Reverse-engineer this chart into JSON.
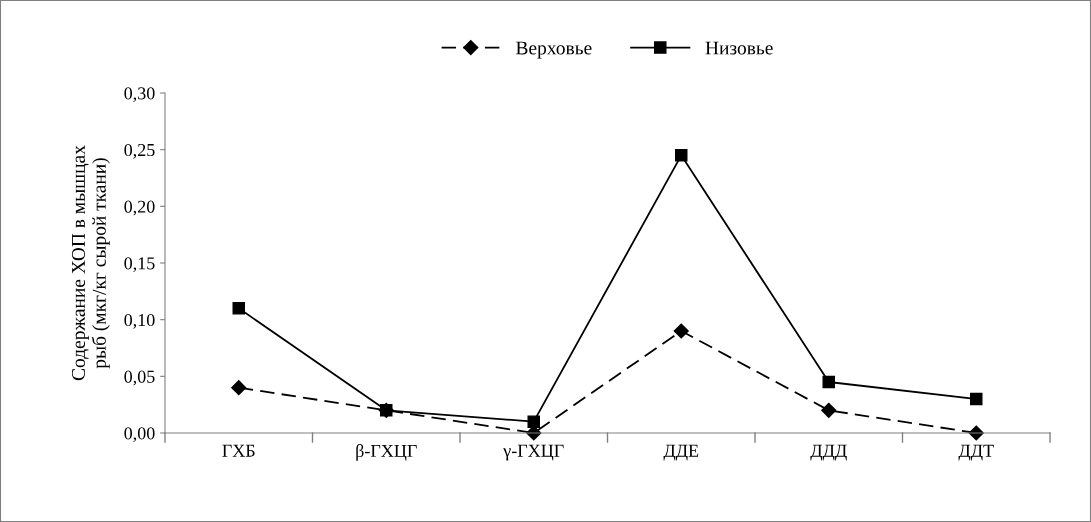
{
  "chart_data": {
    "type": "line",
    "ylabel": "Содержание ХОП в мышцах\nрыб (мкг/кг сырой ткани)",
    "categories": [
      "ГХБ",
      "β-ГХЦГ",
      "γ-ГХЦГ",
      "ДДЕ",
      "ДДД",
      "ДДТ"
    ],
    "series": [
      {
        "name": "Верховье",
        "color": "#000000",
        "marker": "diamond",
        "line_style": "dashed",
        "values": [
          0.04,
          0.02,
          0.0,
          0.09,
          0.02,
          0.0
        ]
      },
      {
        "name": "Низовье",
        "color": "#000000",
        "marker": "square",
        "line_style": "solid",
        "values": [
          0.11,
          0.02,
          0.01,
          0.245,
          0.045,
          0.03
        ]
      }
    ],
    "ylim": [
      0,
      0.3
    ],
    "yticks": [
      {
        "value": 0,
        "label": "0,00"
      },
      {
        "value": 0.05,
        "label": "0,05"
      },
      {
        "value": 0.1,
        "label": "0,10"
      },
      {
        "value": 0.15,
        "label": "0,15"
      },
      {
        "value": 0.2,
        "label": "0,20"
      },
      {
        "value": 0.25,
        "label": "0,25"
      },
      {
        "value": 0.3,
        "label": "0,30"
      }
    ],
    "grid": false,
    "legend": "top"
  }
}
